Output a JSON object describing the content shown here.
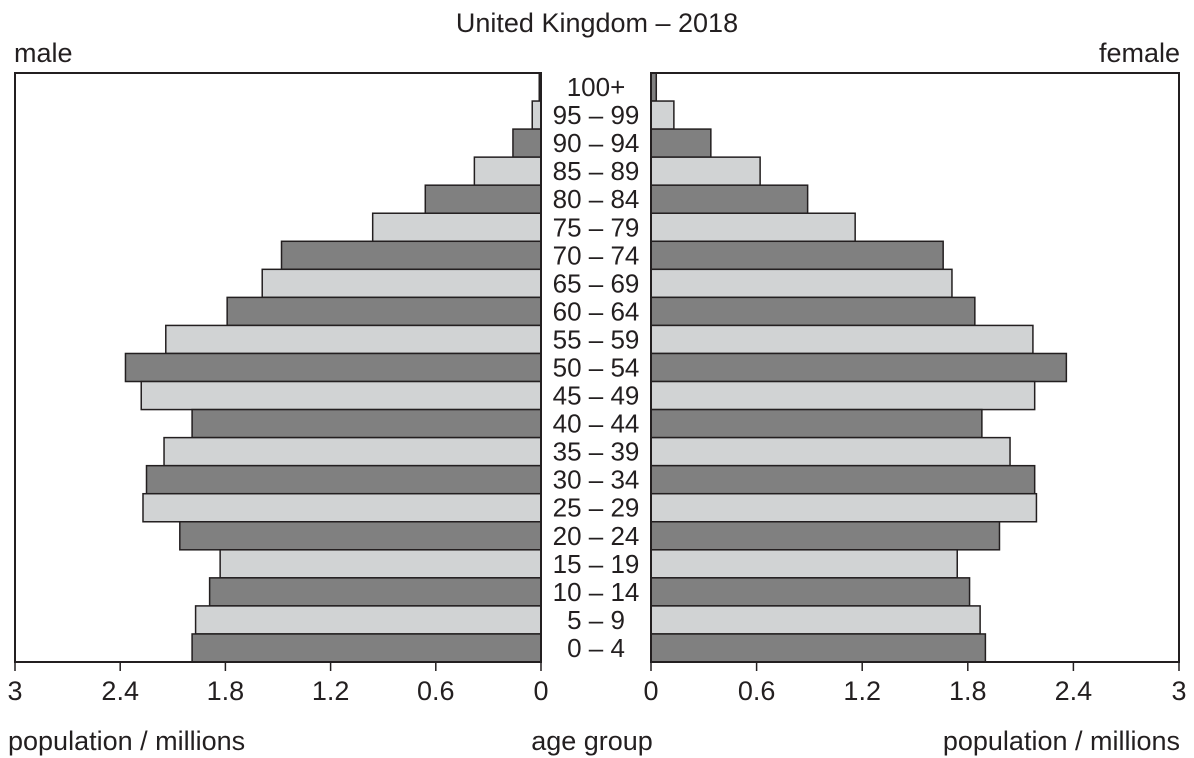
{
  "chart_data": {
    "type": "bar",
    "title": "United Kingdom – 2018",
    "left_label": "male",
    "right_label": "female",
    "center_axis_label": "age group",
    "xlabel_left": "population / millions",
    "xlabel_right": "population / millions",
    "xlim": [
      0,
      3
    ],
    "x_ticks": [
      "0",
      "0.6",
      "1.2",
      "1.8",
      "2.4",
      "3"
    ],
    "categories": [
      "100+",
      "95 – 99",
      "90 – 94",
      "85 – 89",
      "80 – 84",
      "75 – 79",
      "70 – 74",
      "65 – 69",
      "60 – 64",
      "55 – 59",
      "50 – 54",
      "45 – 49",
      "40 – 44",
      "35 – 39",
      "30 – 34",
      "25 – 29",
      "20 – 24",
      "15 – 19",
      "10 – 14",
      "5 – 9",
      "0 – 4"
    ],
    "series": [
      {
        "name": "male",
        "values": [
          0.01,
          0.05,
          0.16,
          0.38,
          0.66,
          0.96,
          1.48,
          1.59,
          1.79,
          2.14,
          2.37,
          2.28,
          1.99,
          2.15,
          2.25,
          2.27,
          2.06,
          1.83,
          1.89,
          1.97,
          1.99
        ]
      },
      {
        "name": "female",
        "values": [
          0.03,
          0.13,
          0.34,
          0.62,
          0.89,
          1.16,
          1.66,
          1.71,
          1.84,
          2.17,
          2.36,
          2.18,
          1.88,
          2.04,
          2.18,
          2.19,
          1.98,
          1.74,
          1.81,
          1.87,
          1.9
        ]
      }
    ],
    "colors": {
      "dark_bar": "#808080",
      "light_bar": "#d1d3d4",
      "stroke": "#231f20",
      "text": "#231f20"
    }
  }
}
